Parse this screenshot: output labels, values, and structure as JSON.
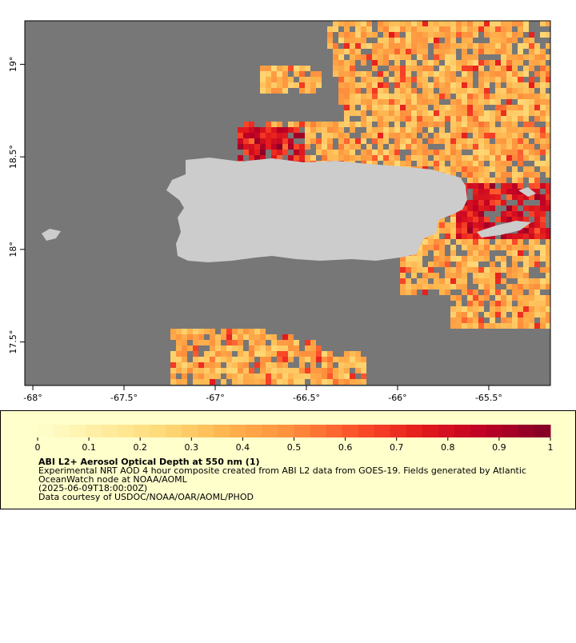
{
  "map": {
    "xlim": [
      -68.044,
      -65.162
    ],
    "ylim": [
      17.265,
      19.235
    ],
    "xticks": [
      {
        "value": -68,
        "label": "-68°"
      },
      {
        "value": -67.5,
        "label": "-67.5°"
      },
      {
        "value": -67,
        "label": "-67°"
      },
      {
        "value": -66.5,
        "label": "-66.5°"
      },
      {
        "value": -66,
        "label": "-66°"
      },
      {
        "value": -65.5,
        "label": "-65.5°"
      }
    ],
    "yticks": [
      {
        "value": 17.5,
        "label": "17.5°"
      },
      {
        "value": 18,
        "label": "18°"
      },
      {
        "value": 18.5,
        "label": "18.5°"
      },
      {
        "value": 19,
        "label": "19°"
      }
    ]
  },
  "colorbar": {
    "range": [
      0,
      1
    ],
    "ticks": [
      0,
      0.1,
      0.2,
      0.3,
      0.4,
      0.5,
      0.6,
      0.7,
      0.8,
      0.9,
      1
    ],
    "colormap": [
      "#ffffcc",
      "#ffeda0",
      "#fed976",
      "#feb24c",
      "#fd8d3c",
      "#fc4e2a",
      "#e31a1c",
      "#bd0026",
      "#800026"
    ]
  },
  "legend": {
    "title": "ABI L2+ Aerosol Optical Depth at 550 nm (1)",
    "lines": [
      "Experimental NRT AOD 4 hour composite created from ABI L2 data from GOES-19. Fields generated by Atlantic",
      "OceanWatch node at NOAA/AOML",
      "(2025-06-09T18:00:00Z)",
      "Data courtesy of USDOC/NOAA/OAR/AOML/PHOD"
    ]
  }
}
